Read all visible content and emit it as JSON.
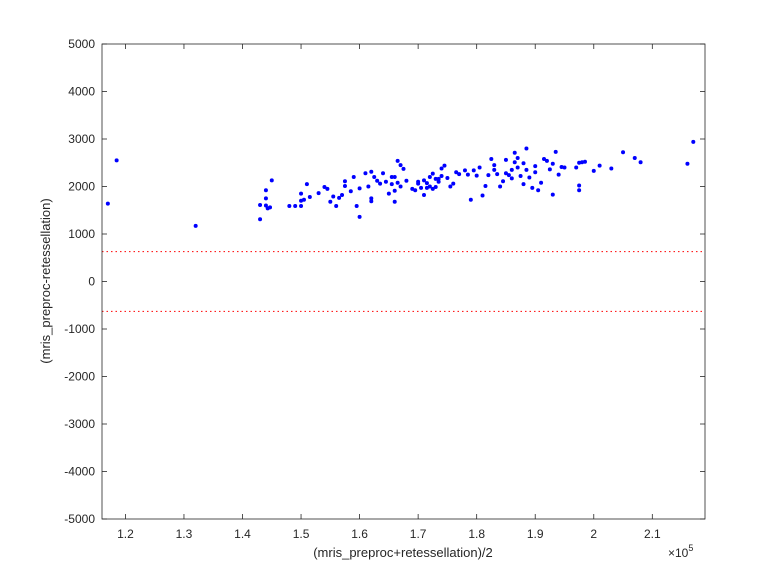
{
  "chart_data": {
    "type": "scatter",
    "title": "",
    "xlabel": "(mris_preproc+retessellation)/2",
    "ylabel": "(mris_preproc-retessellation)",
    "x_multiplier_label": "×10",
    "x_multiplier_exp": "5",
    "xlim": [
      1.16,
      2.19
    ],
    "ylim": [
      -5000,
      5000
    ],
    "xticks": [
      1.2,
      1.3,
      1.4,
      1.5,
      1.6,
      1.7,
      1.8,
      1.9,
      2.0,
      2.1
    ],
    "xtick_labels": [
      "1.2",
      "1.3",
      "1.4",
      "1.5",
      "1.6",
      "1.7",
      "1.8",
      "1.9",
      "2",
      "2.1"
    ],
    "yticks": [
      -5000,
      -4000,
      -3000,
      -2000,
      -1000,
      0,
      1000,
      2000,
      3000,
      4000,
      5000
    ],
    "ytick_labels": [
      "-5000",
      "-4000",
      "-3000",
      "-2000",
      "-1000",
      "0",
      "1000",
      "2000",
      "3000",
      "4000",
      "5000"
    ],
    "grid": false,
    "colors": {
      "points": "#0000ff",
      "limits": "#ff0000",
      "axis": "#262626"
    },
    "limit_lines": [
      {
        "y": 630,
        "style": "dotted"
      },
      {
        "y": -630,
        "style": "dotted"
      }
    ],
    "points": [
      [
        1.17,
        1640
      ],
      [
        1.185,
        2550
      ],
      [
        1.32,
        1170
      ],
      [
        1.43,
        1310
      ],
      [
        1.43,
        1610
      ],
      [
        1.44,
        1600
      ],
      [
        1.44,
        1750
      ],
      [
        1.44,
        1920
      ],
      [
        1.443,
        1540
      ],
      [
        1.447,
        1560
      ],
      [
        1.45,
        2130
      ],
      [
        1.48,
        1590
      ],
      [
        1.49,
        1590
      ],
      [
        1.5,
        1850
      ],
      [
        1.5,
        1700
      ],
      [
        1.5,
        1590
      ],
      [
        1.505,
        1720
      ],
      [
        1.51,
        2050
      ],
      [
        1.515,
        1780
      ],
      [
        1.53,
        1860
      ],
      [
        1.54,
        1990
      ],
      [
        1.545,
        1950
      ],
      [
        1.55,
        1680
      ],
      [
        1.555,
        1790
      ],
      [
        1.56,
        1590
      ],
      [
        1.565,
        1760
      ],
      [
        1.57,
        1820
      ],
      [
        1.575,
        2110
      ],
      [
        1.575,
        2010
      ],
      [
        1.585,
        1900
      ],
      [
        1.59,
        2200
      ],
      [
        1.595,
        1590
      ],
      [
        1.6,
        1360
      ],
      [
        1.6,
        1960
      ],
      [
        1.61,
        2280
      ],
      [
        1.615,
        2000
      ],
      [
        1.62,
        1750
      ],
      [
        1.62,
        1690
      ],
      [
        1.62,
        2310
      ],
      [
        1.625,
        2200
      ],
      [
        1.63,
        2120
      ],
      [
        1.635,
        2060
      ],
      [
        1.64,
        2280
      ],
      [
        1.645,
        2100
      ],
      [
        1.65,
        1850
      ],
      [
        1.655,
        2050
      ],
      [
        1.655,
        2200
      ],
      [
        1.66,
        1680
      ],
      [
        1.66,
        1910
      ],
      [
        1.66,
        2200
      ],
      [
        1.665,
        2540
      ],
      [
        1.665,
        2080
      ],
      [
        1.67,
        2000
      ],
      [
        1.67,
        2450
      ],
      [
        1.675,
        2370
      ],
      [
        1.68,
        2120
      ],
      [
        1.69,
        1950
      ],
      [
        1.695,
        1920
      ],
      [
        1.7,
        2100
      ],
      [
        1.7,
        2060
      ],
      [
        1.705,
        1970
      ],
      [
        1.71,
        2130
      ],
      [
        1.71,
        1820
      ],
      [
        1.715,
        2070
      ],
      [
        1.715,
        1970
      ],
      [
        1.72,
        2200
      ],
      [
        1.72,
        2000
      ],
      [
        1.725,
        1950
      ],
      [
        1.725,
        2270
      ],
      [
        1.73,
        2160
      ],
      [
        1.73,
        1990
      ],
      [
        1.735,
        2160
      ],
      [
        1.735,
        2100
      ],
      [
        1.74,
        2220
      ],
      [
        1.74,
        2380
      ],
      [
        1.745,
        2440
      ],
      [
        1.75,
        2180
      ],
      [
        1.755,
        2000
      ],
      [
        1.76,
        2060
      ],
      [
        1.765,
        2300
      ],
      [
        1.77,
        2260
      ],
      [
        1.78,
        2340
      ],
      [
        1.785,
        2250
      ],
      [
        1.79,
        1720
      ],
      [
        1.795,
        2340
      ],
      [
        1.8,
        2230
      ],
      [
        1.805,
        2400
      ],
      [
        1.81,
        1810
      ],
      [
        1.815,
        2010
      ],
      [
        1.82,
        2240
      ],
      [
        1.825,
        2580
      ],
      [
        1.83,
        2350
      ],
      [
        1.83,
        2450
      ],
      [
        1.835,
        2260
      ],
      [
        1.84,
        2000
      ],
      [
        1.845,
        2110
      ],
      [
        1.85,
        2280
      ],
      [
        1.85,
        2560
      ],
      [
        1.855,
        2240
      ],
      [
        1.86,
        2170
      ],
      [
        1.86,
        2350
      ],
      [
        1.865,
        2710
      ],
      [
        1.865,
        2510
      ],
      [
        1.87,
        2600
      ],
      [
        1.87,
        2400
      ],
      [
        1.875,
        2220
      ],
      [
        1.88,
        2490
      ],
      [
        1.88,
        2050
      ],
      [
        1.885,
        2800
      ],
      [
        1.885,
        2350
      ],
      [
        1.89,
        2190
      ],
      [
        1.895,
        1970
      ],
      [
        1.9,
        2430
      ],
      [
        1.9,
        2300
      ],
      [
        1.905,
        1920
      ],
      [
        1.91,
        2080
      ],
      [
        1.915,
        2580
      ],
      [
        1.92,
        2540
      ],
      [
        1.925,
        2360
      ],
      [
        1.93,
        2480
      ],
      [
        1.93,
        1830
      ],
      [
        1.935,
        2730
      ],
      [
        1.94,
        2250
      ],
      [
        1.945,
        2410
      ],
      [
        1.95,
        2400
      ],
      [
        1.97,
        2400
      ],
      [
        1.975,
        2500
      ],
      [
        1.975,
        1920
      ],
      [
        1.975,
        2020
      ],
      [
        1.98,
        2510
      ],
      [
        1.985,
        2520
      ],
      [
        2.0,
        2330
      ],
      [
        2.01,
        2440
      ],
      [
        2.03,
        2380
      ],
      [
        2.05,
        2720
      ],
      [
        2.07,
        2600
      ],
      [
        2.08,
        2510
      ],
      [
        2.16,
        2480
      ],
      [
        2.17,
        2940
      ]
    ]
  }
}
